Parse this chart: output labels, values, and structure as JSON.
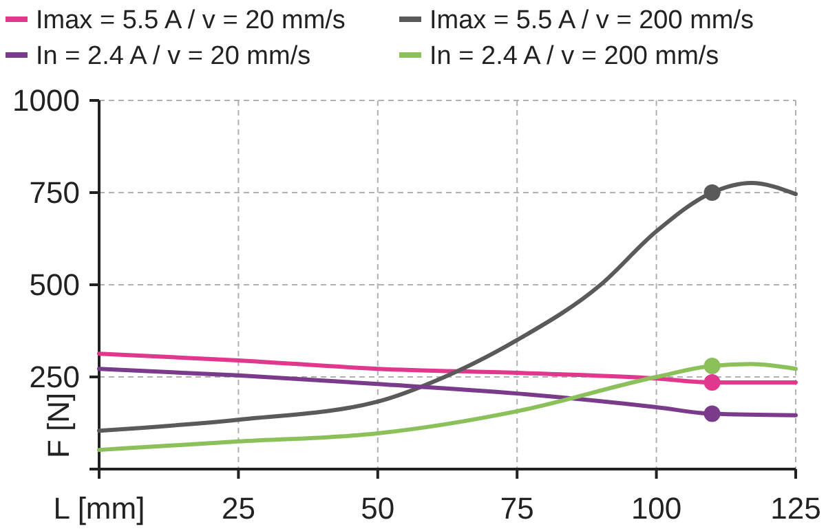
{
  "chart_data": {
    "type": "line",
    "xlabel": null,
    "ylabel": "F [N]",
    "xlim": [
      0,
      125
    ],
    "xticks": [
      {
        "value": 0,
        "label": "L [mm]"
      },
      25,
      50,
      75,
      100,
      125
    ],
    "ylim": [
      0,
      1000
    ],
    "yticks": [
      {
        "value": 0,
        "label": null
      },
      250,
      500,
      750,
      1000
    ],
    "grid": true,
    "legend": "top",
    "line_style": "solid",
    "marker": "none",
    "series": [
      {
        "name": "Imax = 5.5 A / v = 20 mm/s",
        "color": "#e0388c",
        "x": [
          0,
          25,
          50,
          75,
          100,
          110,
          125
        ],
        "values": [
          313,
          295,
          272,
          261,
          246,
          235,
          235
        ]
      },
      {
        "name": "Imax = 5.5 A / v = 200 mm/s",
        "color": "#5a5a5a",
        "x": [
          0,
          25,
          50,
          62,
          75,
          90,
          100,
          110,
          117,
          125
        ],
        "values": [
          104,
          134,
          183,
          250,
          350,
          500,
          645,
          750,
          776,
          746
        ]
      },
      {
        "name": "In = 2.4 A / v = 20 mm/s",
        "color": "#7a3b8a",
        "x": [
          0,
          25,
          50,
          75,
          100,
          110,
          125
        ],
        "values": [
          272,
          254,
          231,
          205,
          168,
          150,
          146
        ]
      },
      {
        "name": "In = 2.4 A / v = 200 mm/s",
        "color": "#8cc05a",
        "x": [
          0,
          25,
          50,
          75,
          100,
          110,
          117,
          125
        ],
        "values": [
          52,
          75,
          97,
          157,
          250,
          280,
          285,
          272
        ]
      },
      {
        "type": "scatter",
        "marker": "circle",
        "color": "#e0388c",
        "x": [
          110
        ],
        "values": [
          235
        ]
      },
      {
        "type": "scatter",
        "marker": "circle",
        "color": "#5a5a5a",
        "x": [
          110
        ],
        "values": [
          750
        ]
      },
      {
        "type": "scatter",
        "marker": "circle",
        "color": "#7a3b8a",
        "x": [
          110
        ],
        "values": [
          150
        ]
      },
      {
        "type": "scatter",
        "marker": "circle",
        "color": "#8cc05a",
        "x": [
          110
        ],
        "values": [
          280
        ]
      }
    ]
  }
}
